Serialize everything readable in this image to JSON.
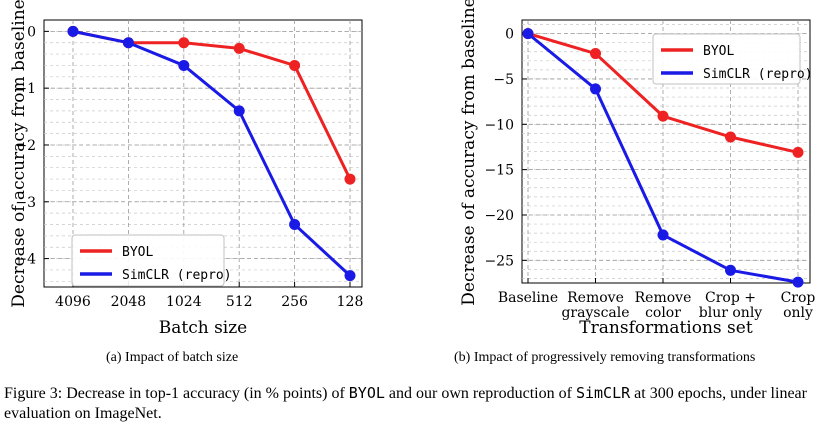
{
  "charts": [
    {
      "type": "line",
      "xlabel": "Batch size",
      "ylabel": "Decrease of accuracy from baseline",
      "categories": [
        "4096",
        "2048",
        "1024",
        "512",
        "256",
        "128"
      ],
      "ylim": [
        -4.5,
        0.2
      ],
      "yticks": [
        0,
        -1,
        -2,
        -3,
        -4
      ],
      "ytick_labels": [
        "0",
        "−1",
        "−2",
        "−3",
        "−4"
      ],
      "grid": true,
      "legend": "bottom-left",
      "series": [
        {
          "name": "BYOL",
          "color": "#ee2222",
          "values": [
            0,
            -0.2,
            -0.2,
            -0.3,
            -0.6,
            -2.6
          ]
        },
        {
          "name": "SimCLR (repro)",
          "color": "#1a1ae6",
          "values": [
            0,
            -0.2,
            -0.6,
            -1.4,
            -3.4,
            -4.3
          ]
        }
      ]
    },
    {
      "type": "line",
      "xlabel": "Transformations set",
      "ylabel": "Decrease of accuracy from baseline",
      "categories": [
        [
          "Baseline"
        ],
        [
          "Remove",
          "grayscale"
        ],
        [
          "Remove",
          "color"
        ],
        [
          "Crop +",
          "blur only"
        ],
        [
          "Crop",
          "only"
        ]
      ],
      "ylim": [
        -27.5,
        1.5
      ],
      "yticks": [
        0,
        -5,
        -10,
        -15,
        -20,
        -25
      ],
      "ytick_labels": [
        "0",
        "−5",
        "−10",
        "−15",
        "−20",
        "−25"
      ],
      "grid": true,
      "legend": "top-right",
      "series": [
        {
          "name": "BYOL",
          "color": "#ee2222",
          "values": [
            0,
            -2.2,
            -9.1,
            -11.4,
            -13.1
          ]
        },
        {
          "name": "SimCLR (repro)",
          "color": "#1a1ae6",
          "values": [
            0,
            -6.1,
            -22.2,
            -26.1,
            -27.4
          ]
        }
      ]
    }
  ],
  "subcaptions": {
    "a": "(a) Impact of batch size",
    "b": "(b) Impact of progressively removing transformations"
  },
  "caption": {
    "t1": "Figure 3: Decrease in top-1 accuracy (in % points) of ",
    "byol": "BYOL",
    "t2": " and our own reproduction of ",
    "simclr": "SimCLR",
    "t3": " at 300 epochs, under linear evaluation on ImageNet."
  }
}
